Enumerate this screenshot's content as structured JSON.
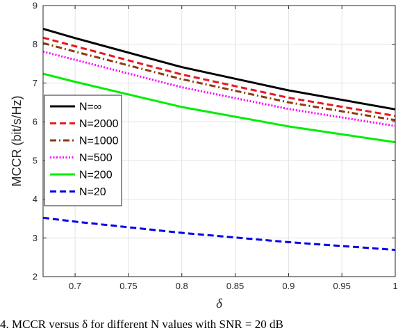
{
  "caption": "4.  MCCR versus δ for different N values with SNR = 20 dB",
  "chart_data": {
    "type": "line",
    "xlabel": "δ",
    "ylabel": "MCCR (bit/s/Hz)",
    "xlim": [
      0.67,
      1.0
    ],
    "ylim": [
      2,
      9
    ],
    "xticks": [
      0.7,
      0.75,
      0.8,
      0.85,
      0.9,
      0.95,
      1
    ],
    "xtick_labels": [
      "0.7",
      "0.75",
      "0.8",
      "0.85",
      "0.9",
      "0.95",
      "1"
    ],
    "yticks": [
      2,
      3,
      4,
      5,
      6,
      7,
      8,
      9
    ],
    "ytick_labels": [
      "2",
      "3",
      "4",
      "5",
      "6",
      "7",
      "8",
      "9"
    ],
    "grid": true,
    "legend_position": "middle-left",
    "x": [
      0.67,
      0.7,
      0.8,
      0.9,
      1.0
    ],
    "series": [
      {
        "name": "N=∞",
        "values": [
          8.4,
          8.16,
          7.41,
          6.81,
          6.32
        ],
        "color": "#000000",
        "dash": "solid"
      },
      {
        "name": "N=2000",
        "values": [
          8.17,
          7.95,
          7.22,
          6.62,
          6.15
        ],
        "color": "#e6191e",
        "dash": "dashed"
      },
      {
        "name": "N=1000",
        "values": [
          8.03,
          7.81,
          7.1,
          6.5,
          6.04
        ],
        "color": "#8b3a0f",
        "dash": "dashdot"
      },
      {
        "name": "N=500",
        "values": [
          7.81,
          7.6,
          6.89,
          6.33,
          5.89
        ],
        "color": "#ff00ff",
        "dash": "dotted"
      },
      {
        "name": "N=200",
        "values": [
          7.24,
          7.03,
          6.38,
          5.88,
          5.47
        ],
        "color": "#00ee00",
        "dash": "solid"
      },
      {
        "name": "N=20",
        "values": [
          3.52,
          3.42,
          3.13,
          2.89,
          2.69
        ],
        "color": "#0000ee",
        "dash": "dashed"
      }
    ]
  }
}
